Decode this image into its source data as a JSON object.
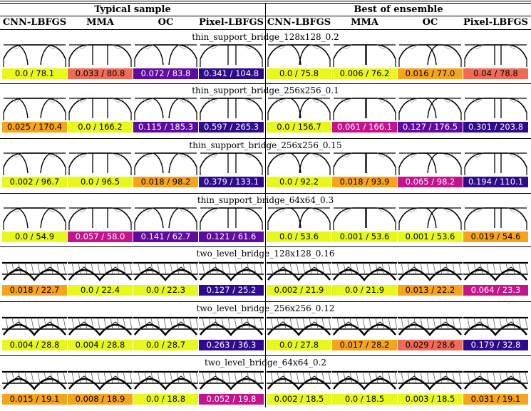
{
  "column_groups": [
    "Typical sample",
    "Best of ensemble"
  ],
  "column_headers": [
    "CNN-LBFGS",
    "MMA",
    "OC",
    "Pixel-LBFGS",
    "CNN-LBFGS",
    "MMA",
    "OC",
    "Pixel-LBFGS"
  ],
  "colors": {
    "c1": "#e8f81c",
    "c2": "#f7a31c",
    "c3": "#f06a55",
    "c4": "#c5128d",
    "c5": "#5f0aa0",
    "c6": "#2d0a8e"
  },
  "rows": [
    {
      "title": "thin_support_bridge_128x128_0.2",
      "thumb": "thin",
      "cells": [
        {
          "label": "0.0 / 78.1",
          "color": "c1"
        },
        {
          "label": "0.033 / 80.8",
          "color": "c3"
        },
        {
          "label": "0.072 / 83.8",
          "color": "c5"
        },
        {
          "label": "0.341 / 104.8",
          "color": "c6"
        },
        {
          "label": "0.0 / 75.8",
          "color": "c1"
        },
        {
          "label": "0.006 / 76.2",
          "color": "c1"
        },
        {
          "label": "0.016 / 77.0",
          "color": "c2"
        },
        {
          "label": "0.04 / 78.8",
          "color": "c3"
        }
      ]
    },
    {
      "title": "thin_support_bridge_256x256_0.1",
      "thumb": "thin",
      "cells": [
        {
          "label": "0.025 / 170.4",
          "color": "c2"
        },
        {
          "label": "0.0 / 166.2",
          "color": "c1"
        },
        {
          "label": "0.115 / 185.3",
          "color": "c5"
        },
        {
          "label": "0.597 / 265.3",
          "color": "c6"
        },
        {
          "label": "0.0 / 156.7",
          "color": "c1"
        },
        {
          "label": "0.061 / 166.1",
          "color": "c4"
        },
        {
          "label": "0.127 / 176.5",
          "color": "c5"
        },
        {
          "label": "0.301 / 203.8",
          "color": "c6"
        }
      ]
    },
    {
      "title": "thin_support_bridge_256x256_0.15",
      "thumb": "thin",
      "cells": [
        {
          "label": "0.002 / 96.7",
          "color": "c1"
        },
        {
          "label": "0.0 / 96.5",
          "color": "c1"
        },
        {
          "label": "0.018 / 98.2",
          "color": "c2"
        },
        {
          "label": "0.379 / 133.1",
          "color": "c6"
        },
        {
          "label": "0.0 / 92.2",
          "color": "c1"
        },
        {
          "label": "0.018 / 93.9",
          "color": "c2"
        },
        {
          "label": "0.065 / 98.2",
          "color": "c4"
        },
        {
          "label": "0.194 / 110.1",
          "color": "c6"
        }
      ]
    },
    {
      "title": "thin_support_bridge_64x64_0.3",
      "thumb": "thin",
      "cells": [
        {
          "label": "0.0 / 54.9",
          "color": "c1"
        },
        {
          "label": "0.057 / 58.0",
          "color": "c4"
        },
        {
          "label": "0.141 / 62.7",
          "color": "c5"
        },
        {
          "label": "0.121 / 61.6",
          "color": "c5"
        },
        {
          "label": "0.0 / 53.6",
          "color": "c1"
        },
        {
          "label": "0.001 / 53.6",
          "color": "c1"
        },
        {
          "label": "0.001 / 53.6",
          "color": "c1"
        },
        {
          "label": "0.019 / 54.6",
          "color": "c2"
        }
      ]
    },
    {
      "title": "two_level_bridge_128x128_0.16",
      "thumb": "two",
      "cells": [
        {
          "label": "0.018 / 22.7",
          "color": "c2"
        },
        {
          "label": "0.0 / 22.4",
          "color": "c1"
        },
        {
          "label": "0.0 / 22.3",
          "color": "c1"
        },
        {
          "label": "0.127 / 25.2",
          "color": "c6"
        },
        {
          "label": "0.002 / 21.9",
          "color": "c1"
        },
        {
          "label": "0.0 / 21.9",
          "color": "c1"
        },
        {
          "label": "0.013 / 22.2",
          "color": "c2"
        },
        {
          "label": "0.064 / 23.3",
          "color": "c4"
        }
      ]
    },
    {
      "title": "two_level_bridge_256x256_0.12",
      "thumb": "two",
      "cells": [
        {
          "label": "0.004 / 28.8",
          "color": "c1"
        },
        {
          "label": "0.004 / 28.8",
          "color": "c1"
        },
        {
          "label": "0.0 / 28.7",
          "color": "c1"
        },
        {
          "label": "0.263 / 36.3",
          "color": "c6"
        },
        {
          "label": "0.0 / 27.8",
          "color": "c1"
        },
        {
          "label": "0.017 / 28.2",
          "color": "c2"
        },
        {
          "label": "0.029 / 28.6",
          "color": "c3"
        },
        {
          "label": "0.179 / 32.8",
          "color": "c6"
        }
      ]
    },
    {
      "title": "two_level_bridge_64x64_0.2",
      "thumb": "two",
      "cells": [
        {
          "label": "0.015 / 19.1",
          "color": "c2"
        },
        {
          "label": "0.008 / 18.9",
          "color": "c2"
        },
        {
          "label": "0.0 / 18.8",
          "color": "c1"
        },
        {
          "label": "0.052 / 19.8",
          "color": "c4"
        },
        {
          "label": "0.002 / 18.5",
          "color": "c1"
        },
        {
          "label": "0.0 / 18.5",
          "color": "c1"
        },
        {
          "label": "0.003 / 18.5",
          "color": "c1"
        },
        {
          "label": "0.031 / 19.1",
          "color": "c2"
        }
      ]
    }
  ]
}
